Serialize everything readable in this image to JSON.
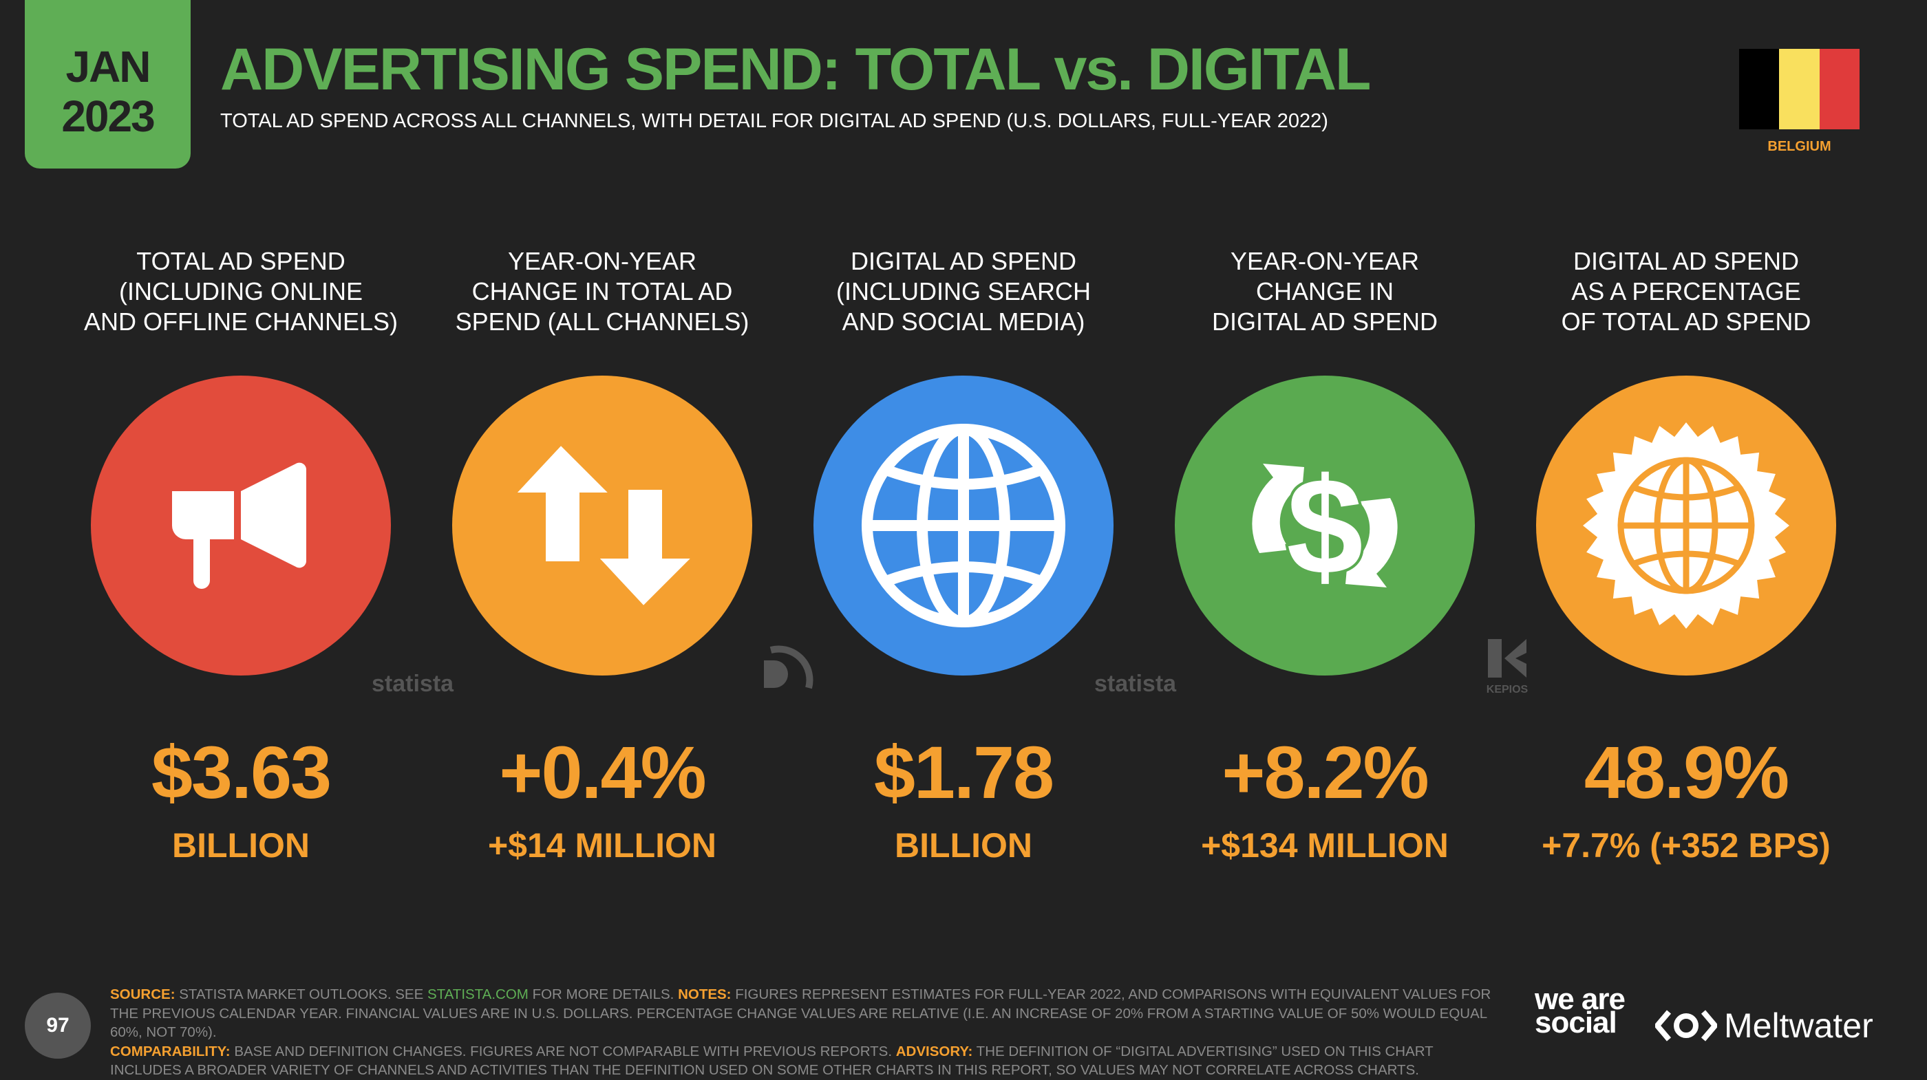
{
  "header": {
    "date_line1": "JAN",
    "date_line2": "2023",
    "title": "ADVERTISING SPEND: TOTAL vs. DIGITAL",
    "subtitle": "TOTAL AD SPEND ACROSS ALL CHANNELS, WITH DETAIL FOR DIGITAL AD SPEND (U.S. DOLLARS, FULL-YEAR 2022)",
    "country": "BELGIUM",
    "flag_colors": [
      "#000000",
      "#f9e05e",
      "#e03b3b"
    ]
  },
  "colors": {
    "accent_green": "#5fae55",
    "accent_orange": "#f5a030",
    "red": "#e24c3c",
    "blue": "#3e8de6",
    "green": "#5aaa50"
  },
  "stats": [
    {
      "label": [
        "TOTAL AD SPEND",
        "(INCLUDING ONLINE",
        "AND OFFLINE CHANNELS)"
      ],
      "value": "$3.63",
      "sub": "BILLION",
      "icon": "megaphone-icon"
    },
    {
      "label": [
        "YEAR-ON-YEAR",
        "CHANGE IN TOTAL AD",
        "SPEND (ALL CHANNELS)"
      ],
      "value": "+0.4%",
      "sub": "+$14 MILLION",
      "icon": "up-down-arrows-icon"
    },
    {
      "label": [
        "DIGITAL AD SPEND",
        "(INCLUDING SEARCH",
        "AND SOCIAL MEDIA)"
      ],
      "value": "$1.78",
      "sub": "BILLION",
      "icon": "globe-icon"
    },
    {
      "label": [
        "YEAR-ON-YEAR",
        "CHANGE IN",
        "DIGITAL AD SPEND"
      ],
      "value": "+8.2%",
      "sub": "+$134 MILLION",
      "icon": "dollar-cycle-icon"
    },
    {
      "label": [
        "DIGITAL AD SPEND",
        "AS A PERCENTAGE",
        "OF TOTAL AD SPEND"
      ],
      "value": "48.9%",
      "sub": "+7.7% (+352 BPS)",
      "icon": "globe-badge-icon"
    }
  ],
  "watermarks": {
    "statista": "statista",
    "kepios": "KEPIOS"
  },
  "footer": {
    "source_label": "SOURCE:",
    "source_text": " STATISTA MARKET OUTLOOKS. SEE ",
    "source_link": "STATISTA.COM",
    "source_text2": " FOR MORE DETAILS. ",
    "notes_label": "NOTES:",
    "notes_text": " FIGURES REPRESENT ESTIMATES FOR FULL-YEAR 2022, AND COMPARISONS WITH EQUIVALENT VALUES FOR THE PREVIOUS CALENDAR YEAR. FINANCIAL VALUES ARE IN U.S. DOLLARS. PERCENTAGE CHANGE VALUES ARE RELATIVE (I.E. AN INCREASE OF 20% FROM A STARTING VALUE OF 50% WOULD EQUAL 60%, NOT 70%).",
    "comparability_label": "COMPARABILITY:",
    "comparability_text": " BASE AND DEFINITION CHANGES. FIGURES ARE NOT COMPARABLE WITH PREVIOUS REPORTS. ",
    "advisory_label": "ADVISORY:",
    "advisory_text": " THE DEFINITION OF “DIGITAL ADVERTISING” USED ON THIS CHART INCLUDES A BROADER VARIETY OF CHANNELS AND ACTIVITIES THAN THE DEFINITION USED ON SOME OTHER CHARTS IN THIS REPORT, SO VALUES MAY NOT CORRELATE ACROSS CHARTS.",
    "page_number": "97",
    "brand1": "we are social",
    "brand2": "Meltwater"
  }
}
